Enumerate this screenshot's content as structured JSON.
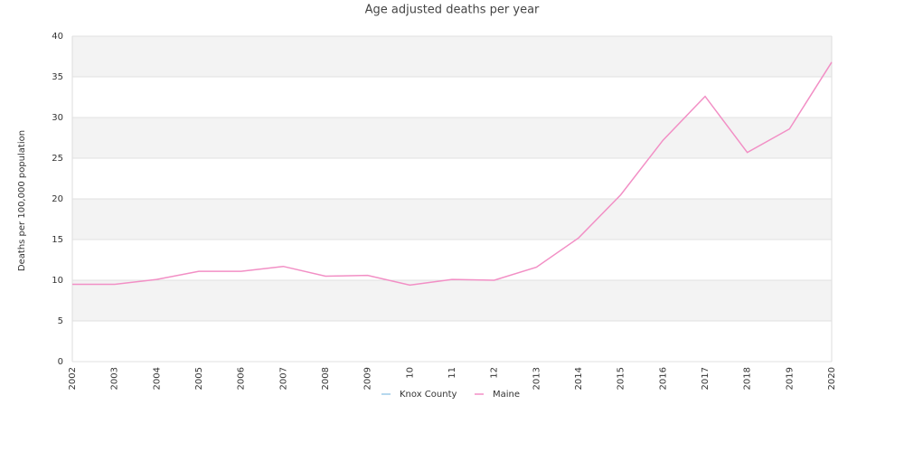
{
  "chart_data": {
    "type": "line",
    "title": "Age adjusted deaths per year",
    "ylabel": "Deaths per 100,000 population",
    "categories": [
      "2002",
      "2003",
      "2004",
      "2005",
      "2006",
      "2007",
      "2008",
      "2009",
      "10",
      "11",
      "12",
      "2013",
      "2014",
      "2015",
      "2016",
      "2017",
      "2018",
      "2019",
      "2020"
    ],
    "series": [
      {
        "name": "Knox County",
        "color": "#9ecae9",
        "values": [
          null,
          null,
          null,
          null,
          null,
          null,
          null,
          null,
          null,
          null,
          null,
          null,
          null,
          null,
          null,
          null,
          null,
          null,
          null
        ]
      },
      {
        "name": "Maine",
        "color": "#f28fc5",
        "values": [
          9.5,
          9.5,
          10.1,
          11.1,
          11.1,
          11.7,
          10.5,
          10.6,
          9.4,
          10.1,
          10.0,
          11.6,
          15.2,
          20.5,
          27.2,
          32.6,
          25.7,
          28.6,
          36.8
        ]
      }
    ],
    "ylim": [
      0,
      40
    ],
    "yticks": [
      0,
      5,
      10,
      15,
      20,
      25,
      30,
      35,
      40
    ],
    "grid": true,
    "legend": "bottom"
  }
}
